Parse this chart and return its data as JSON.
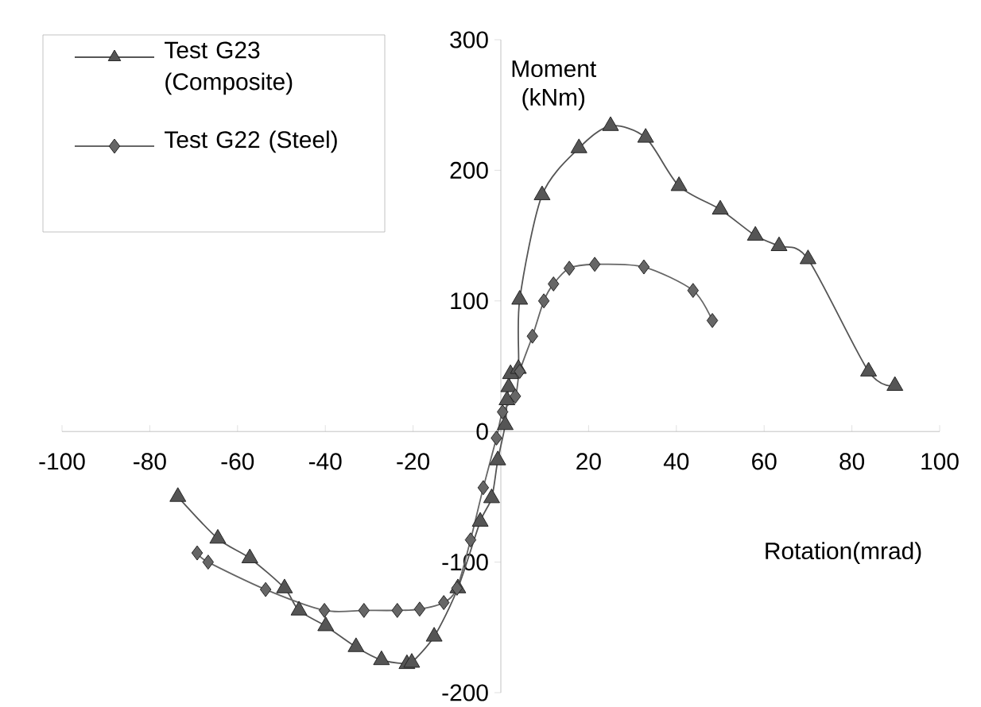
{
  "chart_data": {
    "type": "line",
    "xlabel": "Rotation(mrad)",
    "ylabel": "Moment (kNm)",
    "xlim": [
      -100,
      100
    ],
    "xticks": [
      -100,
      -80,
      -60,
      -40,
      -20,
      {
        "value": 0,
        "label": null
      },
      20,
      40,
      60,
      80,
      100
    ],
    "ylim": [
      -200,
      300
    ],
    "yticks": [
      -200,
      -100,
      0,
      100,
      200,
      300
    ],
    "grid": false,
    "legend": "top left",
    "series": [
      {
        "name": "Test G23 (Composite)",
        "color": "#555555",
        "marker": "triangle",
        "x": [
          -73.6,
          -64.5,
          -57.2,
          -49.3,
          -46,
          -39.9,
          -33,
          -27.2,
          -21.4,
          -20.3,
          -15.2,
          -9.8,
          -4.7,
          -2.1,
          -0.7,
          1,
          1.4,
          1.8,
          2.2,
          4,
          4.3,
          9.4,
          17.8,
          25,
          33,
          40.6,
          50,
          58,
          63.4,
          70,
          83.8,
          89.8
        ],
        "values": [
          -50,
          -82,
          -97,
          -120,
          -137,
          -149,
          -165,
          -175,
          -178,
          -177,
          -157,
          -120,
          -69,
          -51,
          -22,
          5,
          24,
          34,
          44,
          48,
          101,
          181,
          217,
          234,
          225,
          188,
          170,
          150,
          142,
          132,
          46,
          35
        ]
      },
      {
        "name": "Test G22 (Steel)",
        "color": "#666666",
        "marker": "diamond",
        "x": [
          -69.2,
          -66.7,
          -53.6,
          -40.2,
          -31.2,
          -23.6,
          -18.5,
          -13,
          -10,
          -6.9,
          -4,
          -1,
          0.4,
          3.3,
          4.3,
          7.2,
          9.8,
          12,
          15.6,
          21.4,
          32.6,
          43.8,
          48.2
        ],
        "values": [
          -93,
          -100,
          -121,
          -137,
          -137,
          -137,
          -136,
          -131,
          -120,
          -83,
          -43,
          -5,
          15,
          27,
          46,
          73,
          100,
          113,
          125,
          128,
          126,
          108,
          85
        ]
      }
    ]
  }
}
